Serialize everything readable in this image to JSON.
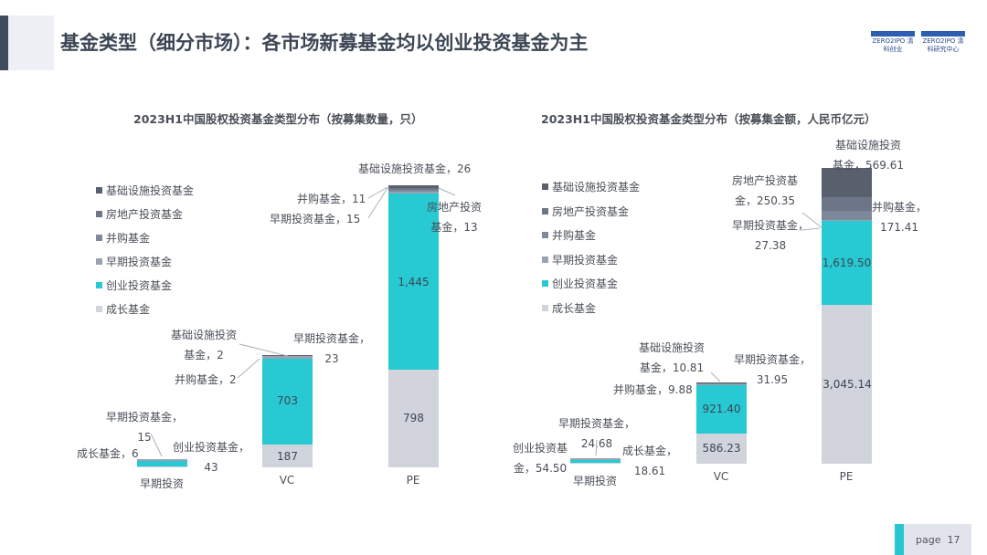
{
  "header": {
    "title": "基金类型（细分市场）：各市场新募基金均以创业投资基金为主",
    "logo1_text": "ZERO2IPO 清科创业",
    "logo2_text": "ZERO2IPO 清科研究中心"
  },
  "colors": {
    "infra": "#59606d",
    "realestate": "#6c7686",
    "ma": "#7d889a",
    "early": "#9aa3b3",
    "vc": "#27c9d2",
    "growth": "#d1d4dc"
  },
  "legend": [
    "基础设施投资基金",
    "房地产投资基金",
    "并购基金",
    "早期投资基金",
    "创业投资基金",
    "成长基金"
  ],
  "chart_data": [
    {
      "type": "bar",
      "stacked": true,
      "title": "2023H1中国股权投资基金类型分布（按募集数量，只）",
      "categories": [
        "早期投资",
        "VC",
        "PE"
      ],
      "series": [
        {
          "name": "成长基金",
          "key": "growth",
          "values": [
            6,
            187,
            798
          ]
        },
        {
          "name": "创业投资基金",
          "key": "vc",
          "values": [
            43,
            703,
            1445
          ]
        },
        {
          "name": "早期投资基金",
          "key": "early",
          "values": [
            15,
            23,
            15
          ]
        },
        {
          "name": "并购基金",
          "key": "ma",
          "values": [
            0,
            2,
            11
          ]
        },
        {
          "name": "房地产投资基金",
          "key": "realestate",
          "values": [
            0,
            0,
            13
          ]
        },
        {
          "name": "基础设施投资基金",
          "key": "infra",
          "values": [
            0,
            2,
            26
          ]
        }
      ],
      "labels": {
        "e_growth": "成长基金，6",
        "e_early1": "早期投资基金，",
        "e_early2": "15",
        "e_vc1": "创业投资基金，",
        "e_vc2": "43",
        "v_infra1": "基础设施投资",
        "v_infra2": "基金，2",
        "v_ma": "并购基金，2",
        "v_early1": "早期投资基金，",
        "v_early2": "23",
        "v_vc": "703",
        "v_growth": "187",
        "p_infra": "基础设施投资基金，26",
        "p_ma": "并购基金，11",
        "p_early": "早期投资基金，15",
        "p_re1": "房地产投资",
        "p_re2": "基金，13",
        "p_vc": "1,445",
        "p_growth": "798"
      }
    },
    {
      "type": "bar",
      "stacked": true,
      "title": "2023H1中国股权投资基金类型分布（按募集金额，人民币亿元）",
      "categories": [
        "早期投资",
        "VC",
        "PE"
      ],
      "series": [
        {
          "name": "成长基金",
          "key": "growth",
          "values": [
            18.61,
            586.23,
            3045.14
          ]
        },
        {
          "name": "创业投资基金",
          "key": "vc",
          "values": [
            54.5,
            921.4,
            1619.5
          ]
        },
        {
          "name": "早期投资基金",
          "key": "early",
          "values": [
            24.68,
            31.95,
            27.38
          ]
        },
        {
          "name": "并购基金",
          "key": "ma",
          "values": [
            0,
            9.88,
            171.41
          ]
        },
        {
          "name": "房地产投资基金",
          "key": "realestate",
          "values": [
            0,
            0,
            250.35
          ]
        },
        {
          "name": "基础设施投资基金",
          "key": "infra",
          "values": [
            0,
            10.81,
            569.61
          ]
        }
      ],
      "labels": {
        "e_vc1": "创业投资基",
        "e_vc2": "金，54.50",
        "e_early1": "早期投资基金，",
        "e_early2": "24.68",
        "e_growth1": "成长基金，",
        "e_growth2": "18.61",
        "v_infra1": "基础设施投资",
        "v_infra2": "基金，10.81",
        "v_ma": "并购基金，9.88",
        "v_early1": "早期投资基金，",
        "v_early2": "31.95",
        "v_vc": "921.40",
        "v_growth": "586.23",
        "p_infra1": "基础设施投资",
        "p_infra2": "基金，569.61",
        "p_re1": "房地产投资基",
        "p_re2": "金，250.35",
        "p_ma1": "并购基金，",
        "p_ma2": "171.41",
        "p_early1": "早期投资基金，",
        "p_early2": "27.38",
        "p_vc": "1,619.50",
        "p_growth": "3,045.14"
      }
    }
  ],
  "footer": {
    "page_label": "page",
    "page_number": "17"
  }
}
